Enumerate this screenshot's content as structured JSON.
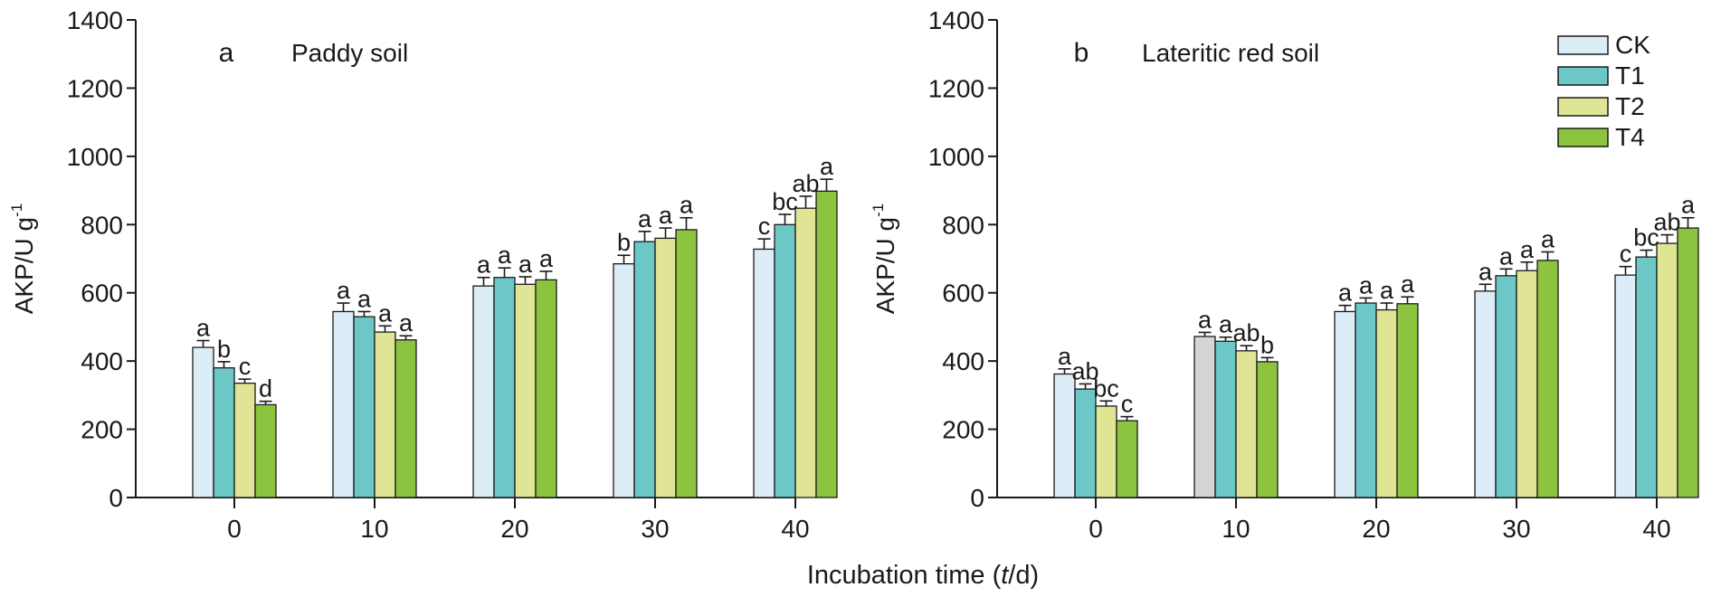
{
  "figure": {
    "xlabel_main": "Incubation time (",
    "xlabel_italic": "t",
    "xlabel_tail": "/d)"
  },
  "legend": [
    {
      "name": "CK",
      "color": "#dcedf8"
    },
    {
      "name": "T1",
      "color": "#6cc7c7"
    },
    {
      "name": "T2",
      "color": "#dfe594"
    },
    {
      "name": "T4",
      "color": "#8cc43f"
    }
  ],
  "chart_data": [
    {
      "type": "bar",
      "panel_letter": "a",
      "title": "Paddy soil",
      "ylabel": "AKP/U g",
      "ylabel_sup": "-1",
      "xlabel": "Incubation time (t/d)",
      "ylim": [
        0,
        1400
      ],
      "yticks": [
        0,
        200,
        400,
        600,
        800,
        1000,
        1200,
        1400
      ],
      "categories": [
        "0",
        "10",
        "20",
        "30",
        "40"
      ],
      "series": [
        {
          "name": "CK",
          "values": [
            440,
            545,
            620,
            685,
            728
          ],
          "errors": [
            20,
            25,
            25,
            25,
            30
          ],
          "letters": [
            "a",
            "a",
            "a",
            "b",
            "c"
          ]
        },
        {
          "name": "T1",
          "values": [
            380,
            530,
            645,
            750,
            800
          ],
          "errors": [
            18,
            15,
            28,
            30,
            30
          ],
          "letters": [
            "b",
            "a",
            "a",
            "a",
            "bc"
          ]
        },
        {
          "name": "T2",
          "values": [
            335,
            485,
            625,
            760,
            848
          ],
          "errors": [
            12,
            18,
            22,
            30,
            35
          ],
          "letters": [
            "c",
            "a",
            "a",
            "a",
            "ab"
          ]
        },
        {
          "name": "T4",
          "values": [
            272,
            462,
            638,
            785,
            898
          ],
          "errors": [
            10,
            12,
            25,
            35,
            35
          ],
          "letters": [
            "d",
            "a",
            "a",
            "a",
            "a"
          ]
        }
      ]
    },
    {
      "type": "bar",
      "panel_letter": "b",
      "title": "Lateritic red soil",
      "ylabel": "AKP/U g",
      "ylabel_sup": "-1",
      "xlabel": "Incubation time (t/d)",
      "ylim": [
        0,
        1400
      ],
      "yticks": [
        0,
        200,
        400,
        600,
        800,
        1000,
        1200,
        1400
      ],
      "categories": [
        "0",
        "10",
        "20",
        "30",
        "40"
      ],
      "series": [
        {
          "name": "CK",
          "values": [
            362,
            472,
            545,
            605,
            652
          ],
          "errors": [
            15,
            12,
            18,
            20,
            25
          ],
          "letters": [
            "a",
            "a",
            "a",
            "a",
            "c"
          ]
        },
        {
          "name": "T1",
          "values": [
            318,
            458,
            570,
            650,
            705
          ],
          "errors": [
            15,
            12,
            15,
            20,
            20
          ],
          "letters": [
            "ab",
            "a",
            "a",
            "a",
            "bc"
          ]
        },
        {
          "name": "T2",
          "values": [
            268,
            430,
            550,
            665,
            745
          ],
          "errors": [
            15,
            15,
            20,
            25,
            25
          ],
          "letters": [
            "bc",
            "ab",
            "a",
            "a",
            "ab"
          ]
        },
        {
          "name": "T4",
          "values": [
            225,
            398,
            568,
            695,
            790
          ],
          "errors": [
            12,
            12,
            20,
            25,
            30
          ],
          "letters": [
            "c",
            "b",
            "a",
            "a",
            "a"
          ]
        }
      ],
      "highlighted_bar": {
        "series": "CK",
        "category": "10",
        "color": "#d5d5d5"
      }
    }
  ]
}
